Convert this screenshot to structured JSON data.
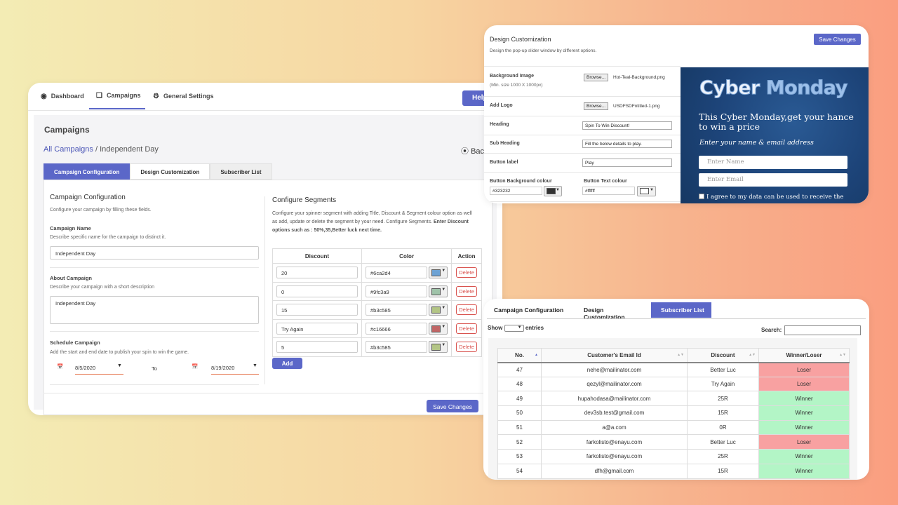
{
  "main": {
    "nav": {
      "dashboard": "Dashboard",
      "campaigns": "Campaigns",
      "general_settings": "General Settings",
      "help": "Help"
    },
    "page_title": "Campaigns",
    "breadcrumb": {
      "link": "All Campaigns",
      "current": " / Independent Day"
    },
    "back": "Back",
    "tabs": [
      "Campaign Configuration",
      "Design Customization",
      "Subscriber List"
    ],
    "config": {
      "heading": "Campaign Configuration",
      "description": "Configure your campaign by filling these fields.",
      "name_label": "Campaign Name",
      "name_desc": "Describe specific name for the campaign to distinct it.",
      "name_value": "Independent Day",
      "about_label": "About Campaign",
      "about_desc": "Describe your campaign with a short description",
      "about_value": "Independent Day",
      "schedule_label": "Schedule Campaign",
      "schedule_desc": "Add the start and end date to publish your spin to win the game.",
      "start_date": "8/5/2020",
      "to": "To",
      "end_date": "8/19/2020"
    },
    "segments": {
      "heading": "Configure Segments",
      "desc": "Configure your spinner segment with adding Title, Discount & Segment colour option as well as add, update or delete the segment by your need. Configure Segments.",
      "desc_bold": "Enter Discount options such as : 50%,35,Better luck next time.",
      "headers": [
        "Discount",
        "Color",
        "Action"
      ],
      "rows": [
        {
          "discount": "20",
          "color": "#6ca2d4"
        },
        {
          "discount": "0",
          "color": "#9fc3a9"
        },
        {
          "discount": "15",
          "color": "#b3c585"
        },
        {
          "discount": "Try Again",
          "color": "#c16666"
        },
        {
          "discount": "5",
          "color": "#b3c585"
        }
      ],
      "delete_label": "Delete",
      "add_label": "Add"
    },
    "save_label": "Save Changes"
  },
  "design": {
    "title": "Design Customization",
    "desc": "Design the pop-up slider window by different options.",
    "save_label": "Save Changes",
    "bg_label": "Background Image",
    "bg_sub": "(Min. size 1000 X 1000px)",
    "bg_file": "Hot-Teal-Background.png",
    "browse": "Browse...",
    "logo_label": "Add Logo",
    "logo_file": "USDFSDFntitled-1.png",
    "heading_label": "Heading",
    "heading_value": "Spin To Win Discount!",
    "subheading_label": "Sub Heading",
    "subheading_value": "Fill the below details to play.",
    "button_label": "Button label",
    "button_value": "Play",
    "btn_bg_label": "Button Background colour",
    "btn_bg_value": "#323232",
    "btn_text_label": "Button Text colour",
    "btn_text_value": "#ffffff",
    "preview": {
      "title_a": "Cyber ",
      "title_b": "Monday",
      "heading": "This Cyber Monday,get your hance to win a price",
      "sub": "Enter your name & email address",
      "name_ph": "Enter Name",
      "email_ph": "Enter Email",
      "agree": "I agree to my data can be used to receive the"
    }
  },
  "subscribers": {
    "tabs": [
      "Campaign Configuration",
      "Design Customization",
      "Subscriber List"
    ],
    "show": "Show",
    "entries": "entries",
    "search": "Search:",
    "headers": [
      "No.",
      "Customer's Email Id",
      "Discount",
      "Winner/Loser"
    ],
    "rows": [
      {
        "no": "47",
        "email": "nehe@mailinator.com",
        "discount": "Better Luc",
        "result": "Loser"
      },
      {
        "no": "48",
        "email": "qezyl@mailinator.com",
        "discount": "Try Again",
        "result": "Loser"
      },
      {
        "no": "49",
        "email": "hupahodasa@mailinator.com",
        "discount": "25R",
        "result": "Winner"
      },
      {
        "no": "50",
        "email": "dev3sb.test@gmail.com",
        "discount": "15R",
        "result": "Winner"
      },
      {
        "no": "51",
        "email": "a@a.com",
        "discount": "0R",
        "result": "Winner"
      },
      {
        "no": "52",
        "email": "farkolisto@enayu.com",
        "discount": "Better Luc",
        "result": "Loser"
      },
      {
        "no": "53",
        "email": "farkolisto@enayu.com",
        "discount": "25R",
        "result": "Winner"
      },
      {
        "no": "54",
        "email": "dfh@gmail.com",
        "discount": "15R",
        "result": "Winner"
      }
    ]
  }
}
